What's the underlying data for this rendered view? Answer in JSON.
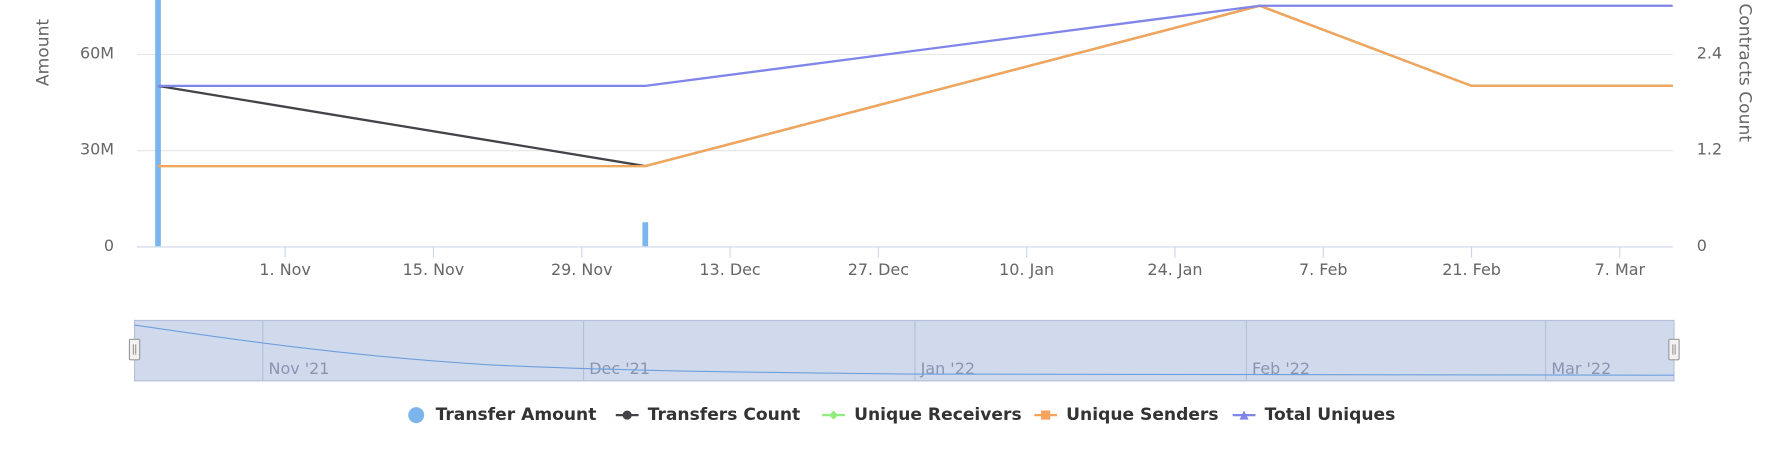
{
  "chart_data": {
    "type": "line",
    "y_title": "Amount",
    "y2_title": "Token Contracts Count",
    "x": [
      "2021-10-20",
      "2021-12-05",
      "2022-02-01",
      "2022-02-21",
      "2022-03-12"
    ],
    "xlim": [
      "2021-10-18",
      "2022-03-12"
    ],
    "xticks": [
      {
        "value": "2021-11-01",
        "label": "1. Nov"
      },
      {
        "value": "2021-11-15",
        "label": "15. Nov"
      },
      {
        "value": "2021-11-29",
        "label": "29. Nov"
      },
      {
        "value": "2021-12-13",
        "label": "13. Dec"
      },
      {
        "value": "2021-12-27",
        "label": "27. Dec"
      },
      {
        "value": "2022-01-10",
        "label": "10. Jan"
      },
      {
        "value": "2022-01-24",
        "label": "24. Jan"
      },
      {
        "value": "2022-02-07",
        "label": "7. Feb"
      },
      {
        "value": "2022-02-21",
        "label": "21. Feb"
      },
      {
        "value": "2022-03-07",
        "label": "7. Mar"
      }
    ],
    "ylim": [
      0,
      75000000
    ],
    "yticks": [
      0,
      {
        "value": 30000000,
        "label": "30M"
      },
      {
        "value": 60000000,
        "label": "60M"
      }
    ],
    "y2lim": [
      0,
      3
    ],
    "y2ticks": [
      0,
      1.2,
      2.4
    ],
    "grid": true,
    "legend": "bottom",
    "series": [
      {
        "name": "Transfer Amount",
        "type": "column",
        "marker": "circle",
        "color": "#7cb5ec",
        "values": [
          80000000,
          7500000,
          null,
          null,
          null
        ]
      },
      {
        "name": "Transfers Count",
        "type": "line",
        "marker": "circle",
        "color": "#434348",
        "axis": "y2",
        "values": [
          2,
          1,
          3,
          2,
          2
        ]
      },
      {
        "name": "Unique Receivers",
        "type": "line",
        "marker": "diamond",
        "color": "#90ed7d",
        "axis": "y2",
        "values": [
          1,
          1,
          3,
          2,
          2
        ]
      },
      {
        "name": "Unique Senders",
        "type": "line",
        "marker": "square",
        "color": "#f7a35c",
        "axis": "y2",
        "values": [
          1,
          1,
          3,
          2,
          2
        ]
      },
      {
        "name": "Total Uniques",
        "type": "line",
        "marker": "triangle",
        "color": "#8085e9",
        "axis": "y2",
        "values": [
          2,
          2,
          3,
          3,
          3
        ]
      }
    ],
    "navigator": {
      "xlim": [
        "2021-10-20",
        "2022-03-13"
      ],
      "labels": [
        {
          "value": "2021-11-01",
          "label": "Nov '21"
        },
        {
          "value": "2021-12-01",
          "label": "Dec '21"
        },
        {
          "value": "2022-01-01",
          "label": "Jan '22"
        },
        {
          "value": "2022-02-01",
          "label": "Feb '22"
        },
        {
          "value": "2022-03-01",
          "label": "Mar '22"
        }
      ]
    }
  }
}
